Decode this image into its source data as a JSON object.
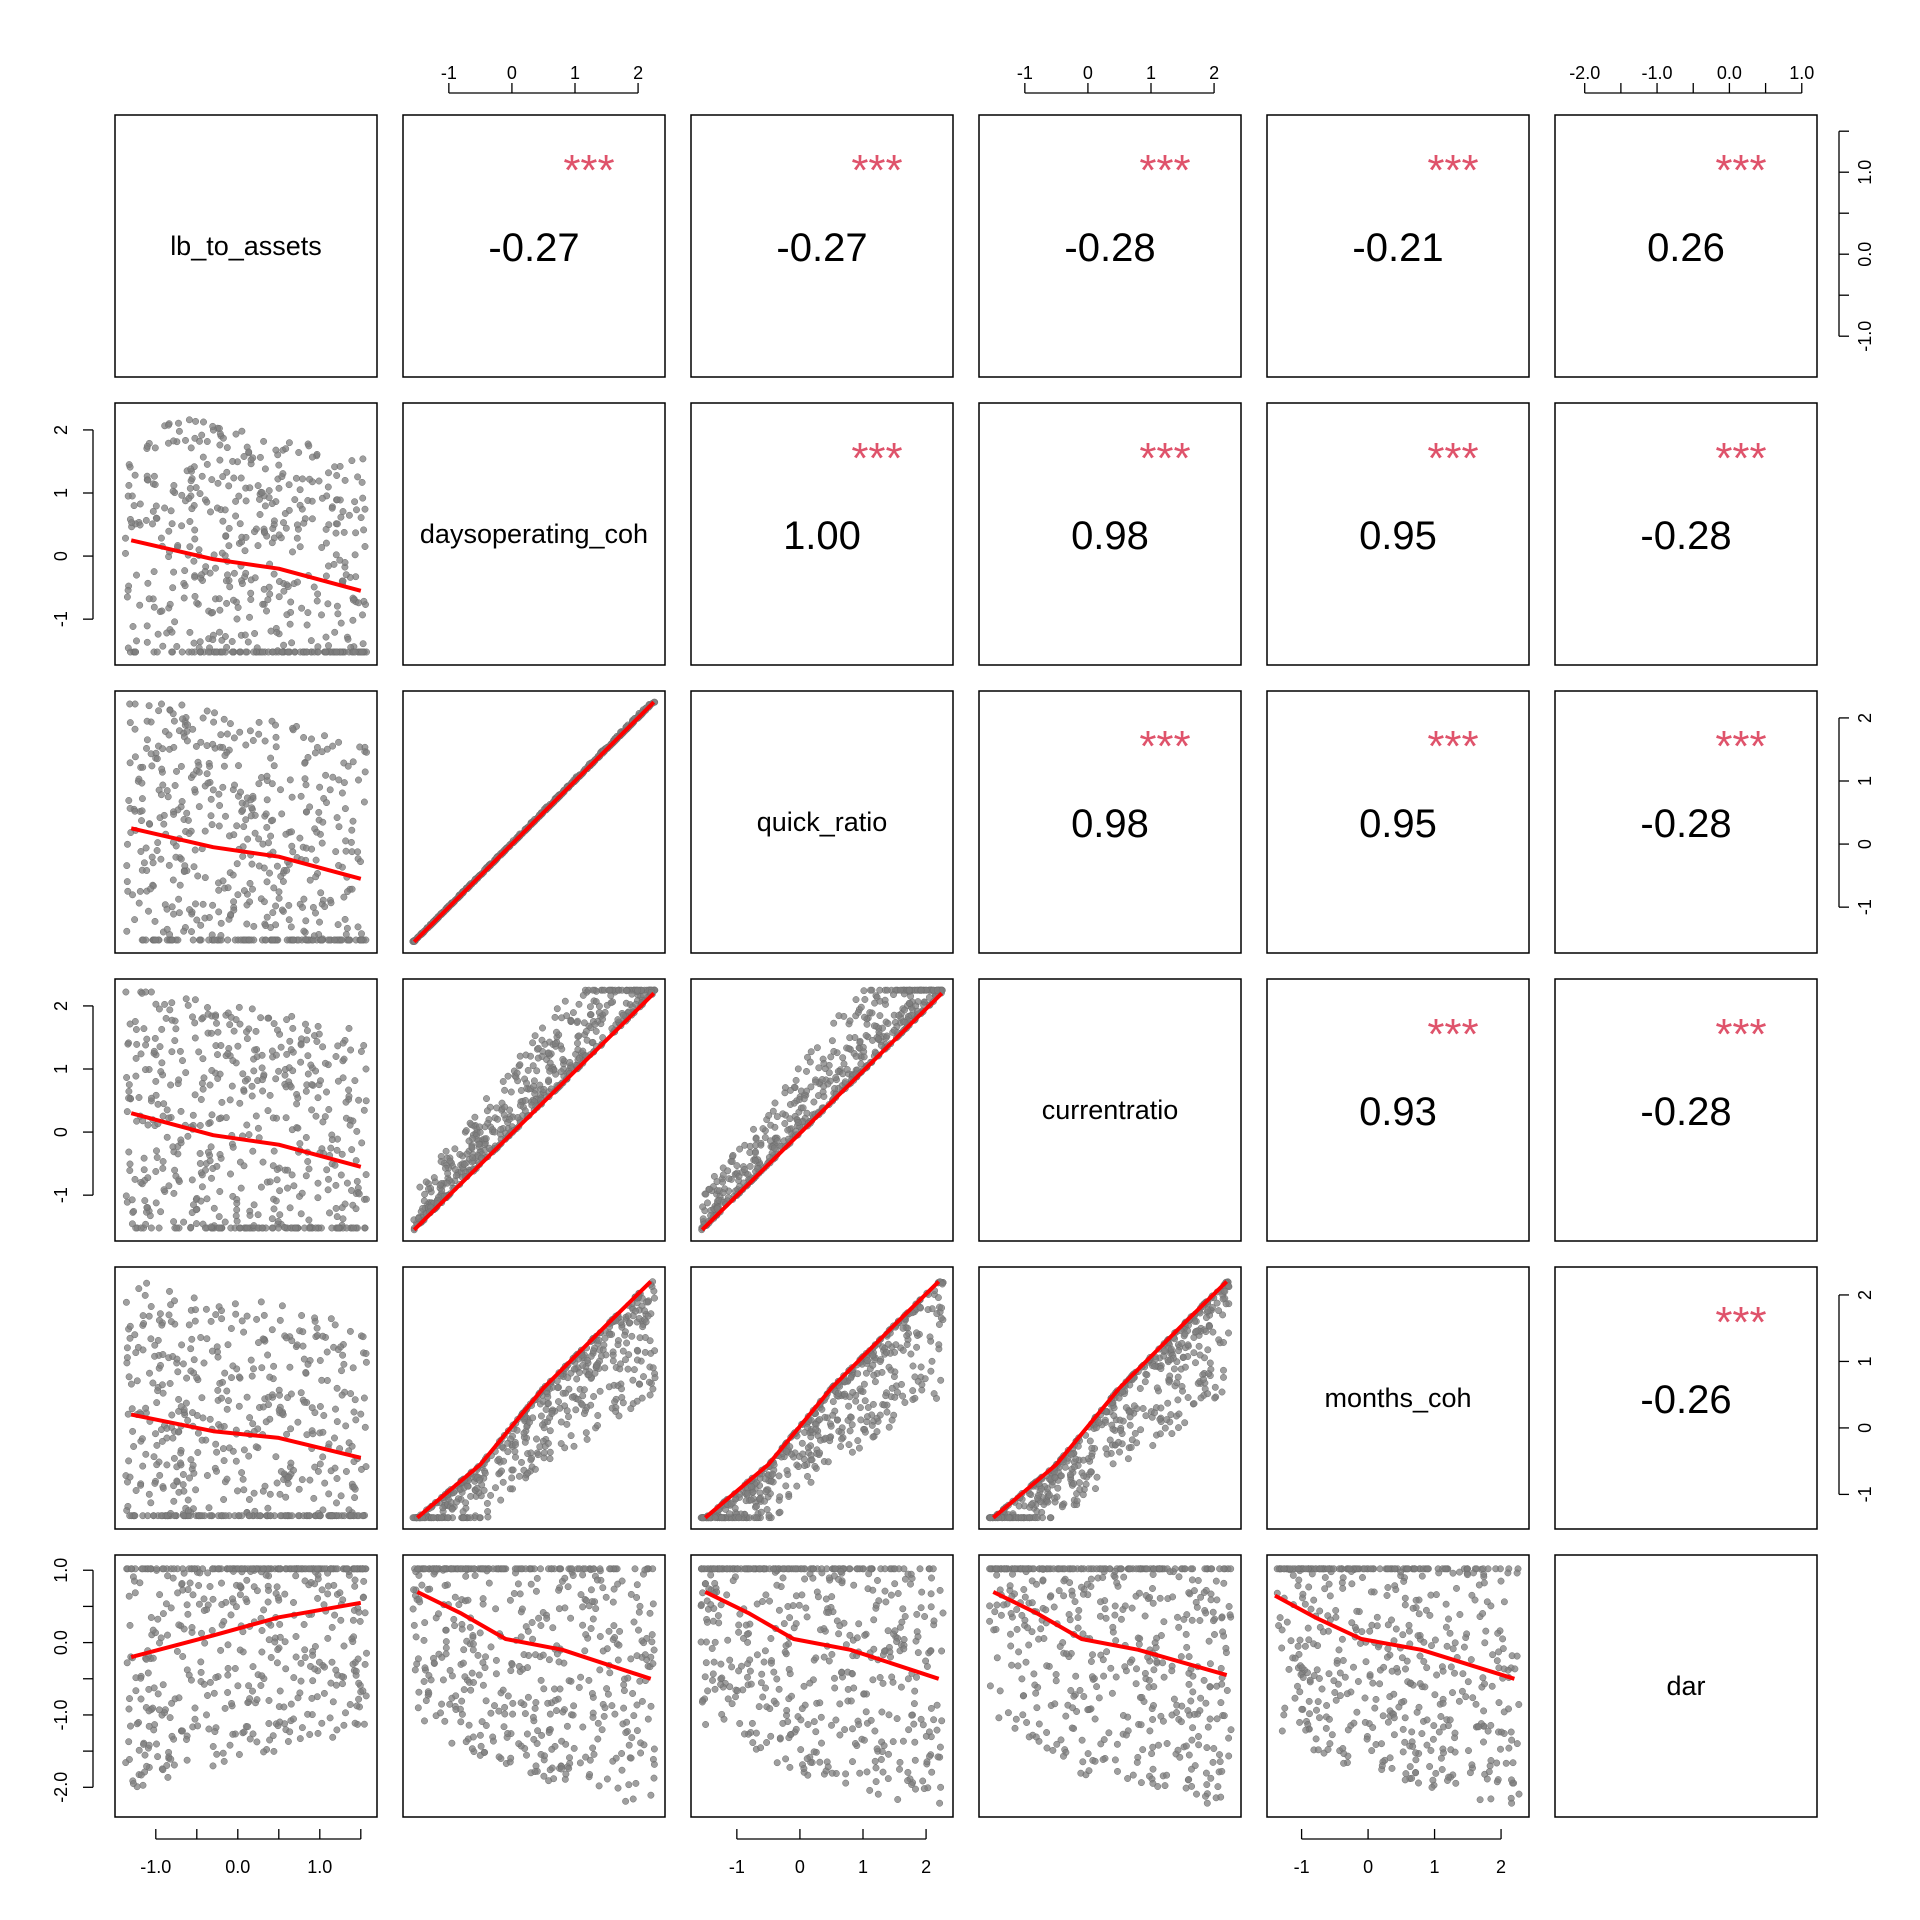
{
  "chart_data": {
    "type": "scatter",
    "variables": [
      "lb_to_assets",
      "daysoperating_coh",
      "quick_ratio",
      "currentratio",
      "months_coh",
      "dar"
    ],
    "correlations": [
      [
        "",
        "-0.27",
        "-0.27",
        "-0.28",
        "-0.21",
        "0.26"
      ],
      [
        "",
        "",
        "1.00",
        "0.98",
        "0.95",
        "-0.28"
      ],
      [
        "",
        "",
        "",
        "0.98",
        "0.95",
        "-0.28"
      ],
      [
        "",
        "",
        "",
        "",
        "0.93",
        "-0.28"
      ],
      [
        "",
        "",
        "",
        "",
        "",
        "-0.26"
      ]
    ],
    "significance": "***",
    "axes": [
      {
        "var": "lb_to_assets",
        "range": [
          -1.4,
          1.6
        ],
        "ticks": [
          "-1.0",
          "0.0",
          "1.0"
        ],
        "minor_ticks": [
          -1.0,
          -0.5,
          0.0,
          0.5,
          1.0,
          1.5
        ]
      },
      {
        "var": "daysoperating_coh",
        "range": [
          -1.6,
          2.3
        ],
        "ticks": [
          "-1",
          "0",
          "1",
          "2"
        ],
        "minor_ticks": []
      },
      {
        "var": "quick_ratio",
        "range": [
          -1.6,
          2.3
        ],
        "ticks": [
          "-1",
          "0",
          "1",
          "2"
        ],
        "minor_ticks": []
      },
      {
        "var": "currentratio",
        "range": [
          -1.6,
          2.3
        ],
        "ticks": [
          "-1",
          "0",
          "1",
          "2"
        ],
        "minor_ticks": []
      },
      {
        "var": "months_coh",
        "range": [
          -1.4,
          2.3
        ],
        "ticks": [
          "-1",
          "0",
          "1",
          "2"
        ],
        "minor_ticks": []
      },
      {
        "var": "dar",
        "range": [
          -2.3,
          1.1
        ],
        "ticks": [
          "-2.0",
          "-1.0",
          "0.0",
          "1.0"
        ],
        "minor_ticks": [
          -2.0,
          -1.5,
          -1.0,
          -0.5,
          0.0,
          0.5,
          1.0
        ]
      }
    ],
    "axis_placement": {
      "top": [
        1,
        3,
        5
      ],
      "right": [
        0,
        2,
        4
      ],
      "bottom": [
        0,
        2,
        4
      ],
      "left": [
        1,
        3,
        5
      ]
    },
    "loess_fits": {
      "1-0": {
        "x": [
          -1.3,
          -0.3,
          0.5,
          1.5
        ],
        "y": [
          0.25,
          -0.05,
          -0.2,
          -0.55
        ]
      },
      "2-0": {
        "x": [
          -1.3,
          -0.3,
          0.5,
          1.5
        ],
        "y": [
          0.25,
          -0.05,
          -0.2,
          -0.55
        ]
      },
      "3-0": {
        "x": [
          -1.3,
          -0.3,
          0.5,
          1.5
        ],
        "y": [
          0.3,
          -0.05,
          -0.2,
          -0.55
        ]
      },
      "4-0": {
        "x": [
          -1.3,
          -0.3,
          0.5,
          1.5
        ],
        "y": [
          0.2,
          -0.05,
          -0.15,
          -0.45
        ]
      },
      "5-0": {
        "x": [
          -1.3,
          -0.3,
          0.5,
          1.5
        ],
        "y": [
          -0.2,
          0.1,
          0.35,
          0.55
        ]
      },
      "2-1": {
        "x": [
          -1.55,
          2.25
        ],
        "y": [
          -1.55,
          2.25
        ]
      },
      "3-1": {
        "x": [
          -1.55,
          2.25
        ],
        "y": [
          -1.55,
          2.2
        ]
      },
      "3-2": {
        "x": [
          -1.55,
          2.25
        ],
        "y": [
          -1.55,
          2.2
        ]
      },
      "4-1": {
        "x": [
          -1.5,
          -0.5,
          0.5,
          1.5,
          2.2
        ],
        "y": [
          -1.35,
          -0.55,
          0.6,
          1.55,
          2.2
        ]
      },
      "4-2": {
        "x": [
          -1.5,
          -0.5,
          0.5,
          1.5,
          2.2
        ],
        "y": [
          -1.35,
          -0.55,
          0.6,
          1.55,
          2.2
        ]
      },
      "4-3": {
        "x": [
          -1.5,
          -0.5,
          0.5,
          1.5,
          2.2
        ],
        "y": [
          -1.35,
          -0.55,
          0.6,
          1.55,
          2.2
        ]
      },
      "5-1": {
        "x": [
          -1.5,
          -0.8,
          -0.1,
          0.8,
          2.2
        ],
        "y": [
          0.7,
          0.4,
          0.05,
          -0.1,
          -0.5
        ]
      },
      "5-2": {
        "x": [
          -1.5,
          -0.8,
          -0.1,
          0.8,
          2.2
        ],
        "y": [
          0.7,
          0.4,
          0.05,
          -0.1,
          -0.5
        ]
      },
      "5-3": {
        "x": [
          -1.5,
          -0.8,
          -0.1,
          0.8,
          2.2
        ],
        "y": [
          0.7,
          0.4,
          0.05,
          -0.1,
          -0.45
        ]
      },
      "5-4": {
        "x": [
          -1.4,
          -0.8,
          -0.1,
          0.8,
          2.2
        ],
        "y": [
          0.65,
          0.35,
          0.05,
          -0.1,
          -0.5
        ]
      }
    },
    "colors": {
      "points": "#7f7f7f",
      "fit": "#ff0000",
      "stars": "#df536b",
      "frame": "#000000"
    },
    "grid": false
  }
}
